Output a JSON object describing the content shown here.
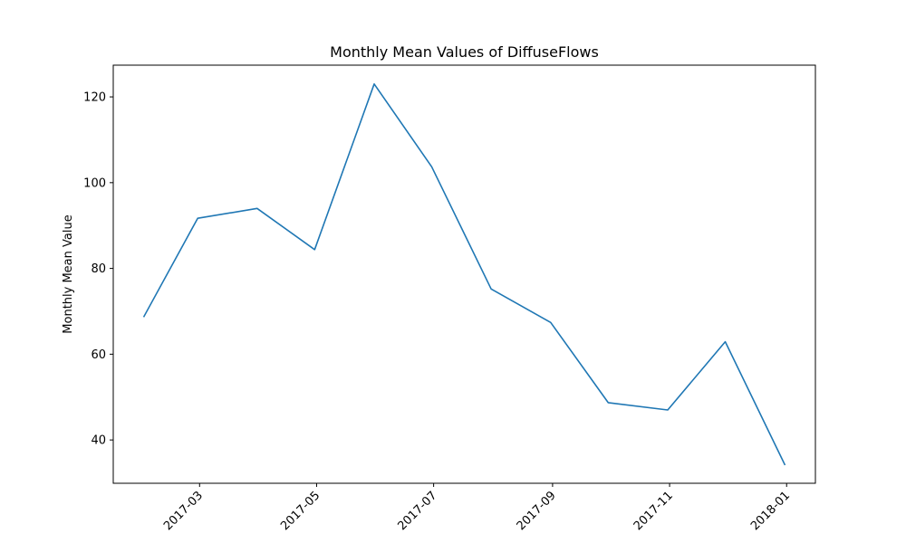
{
  "chart_data": {
    "type": "line",
    "title": "Monthly Mean Values of DiffuseFlows",
    "xlabel": "",
    "ylabel": "Monthly Mean Value",
    "x": [
      "2017-01-31",
      "2017-02-28",
      "2017-03-31",
      "2017-04-30",
      "2017-05-31",
      "2017-06-30",
      "2017-07-31",
      "2017-08-31",
      "2017-09-30",
      "2017-10-31",
      "2017-11-30",
      "2017-12-31"
    ],
    "series": [
      {
        "values": [
          68.8,
          91.7,
          94.0,
          84.4,
          123.0,
          103.7,
          75.2,
          67.4,
          48.7,
          47.0,
          62.9,
          34.3
        ]
      }
    ],
    "x_ticks": [
      "2017-03",
      "2017-05",
      "2017-07",
      "2017-09",
      "2017-11",
      "2018-01"
    ],
    "y_ticks": [
      40,
      60,
      80,
      100,
      120
    ],
    "xlim": [
      "2017-01-15",
      "2018-01-16"
    ],
    "ylim": [
      29.9,
      127.4
    ],
    "grid": false,
    "line_color": "#1f77b4"
  }
}
